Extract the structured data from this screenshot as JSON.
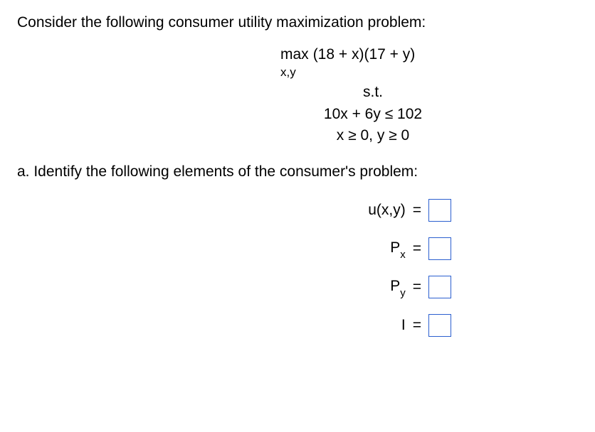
{
  "intro": "Consider the following consumer utility maximization problem:",
  "objective": {
    "max_word": "max",
    "variables_sub": "x,y",
    "expression": "(18 + x)(17 + y)"
  },
  "subject_to": "s.t.",
  "constraint1": "10x  +  6y  ≤  102",
  "constraint2": "x ≥ 0,  y ≥ 0",
  "part_a": "a. Identify the following elements of the consumer's problem:",
  "labels": {
    "u": "u(x,y)",
    "px_p": "P",
    "px_sub": "x",
    "py_p": "P",
    "py_sub": "y",
    "income": "I"
  },
  "eq_sign": "=",
  "styles": {
    "box_border_color": "#2b5fcf",
    "text_color": "#000000",
    "background": "#ffffff"
  }
}
